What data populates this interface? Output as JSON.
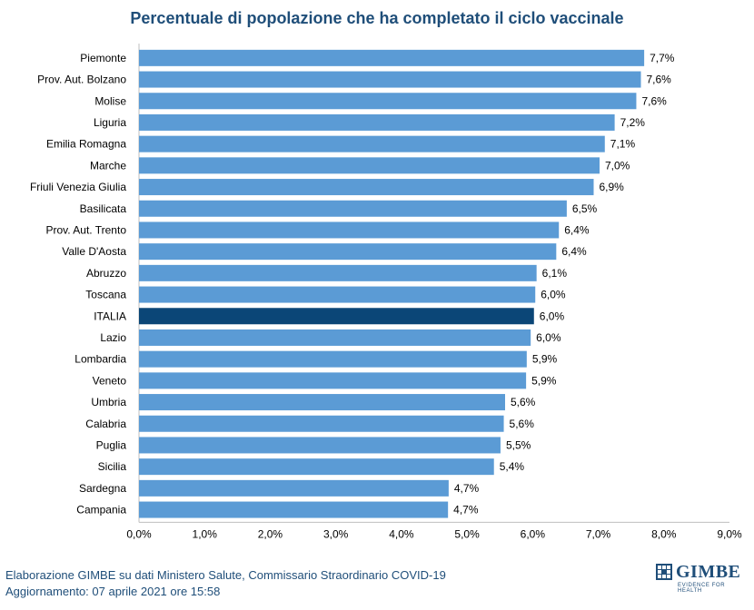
{
  "chart_data": {
    "type": "bar",
    "orientation": "horizontal",
    "title": "Percentuale di popolazione che ha completato il ciclo vaccinale",
    "categories": [
      "Piemonte",
      "Prov. Aut. Bolzano",
      "Molise",
      "Liguria",
      "Emilia Romagna",
      "Marche",
      "Friuli Venezia Giulia",
      "Basilicata",
      "Prov. Aut. Trento",
      "Valle D'Aosta",
      "Abruzzo",
      "Toscana",
      "ITALIA",
      "Lazio",
      "Lombardia",
      "Veneto",
      "Umbria",
      "Calabria",
      "Puglia",
      "Sicilia",
      "Sardegna",
      "Campania"
    ],
    "values": [
      7.7,
      7.65,
      7.58,
      7.25,
      7.1,
      7.02,
      6.93,
      6.52,
      6.4,
      6.36,
      6.06,
      6.04,
      6.02,
      5.97,
      5.91,
      5.9,
      5.58,
      5.56,
      5.51,
      5.41,
      4.72,
      4.71
    ],
    "labels": [
      "7,7%",
      "7,6%",
      "7,6%",
      "7,2%",
      "7,1%",
      "7,0%",
      "6,9%",
      "6,5%",
      "6,4%",
      "6,4%",
      "6,1%",
      "6,0%",
      "6,0%",
      "6,0%",
      "5,9%",
      "5,9%",
      "5,6%",
      "5,6%",
      "5,5%",
      "5,4%",
      "4,7%",
      "4,7%"
    ],
    "highlight": "ITALIA",
    "xlim": [
      0,
      9
    ],
    "xticks": [
      "0,0%",
      "1,0%",
      "2,0%",
      "3,0%",
      "4,0%",
      "5,0%",
      "6,0%",
      "7,0%",
      "8,0%",
      "9,0%"
    ],
    "xlabel": "",
    "ylabel": "",
    "colors": {
      "bar": "#5b9bd5",
      "highlight": "#0b4677",
      "text": "#000000",
      "title": "#1f4e79"
    }
  },
  "footer": {
    "line1": "Elaborazione GIMBE su dati Ministero Salute, Commissario Straordinario COVID-19",
    "line2": "Aggiornamento: 07 aprile 2021 ore 15:58"
  },
  "logo": {
    "name": "GIMBE",
    "tagline": "EVIDENCE FOR HEALTH"
  }
}
